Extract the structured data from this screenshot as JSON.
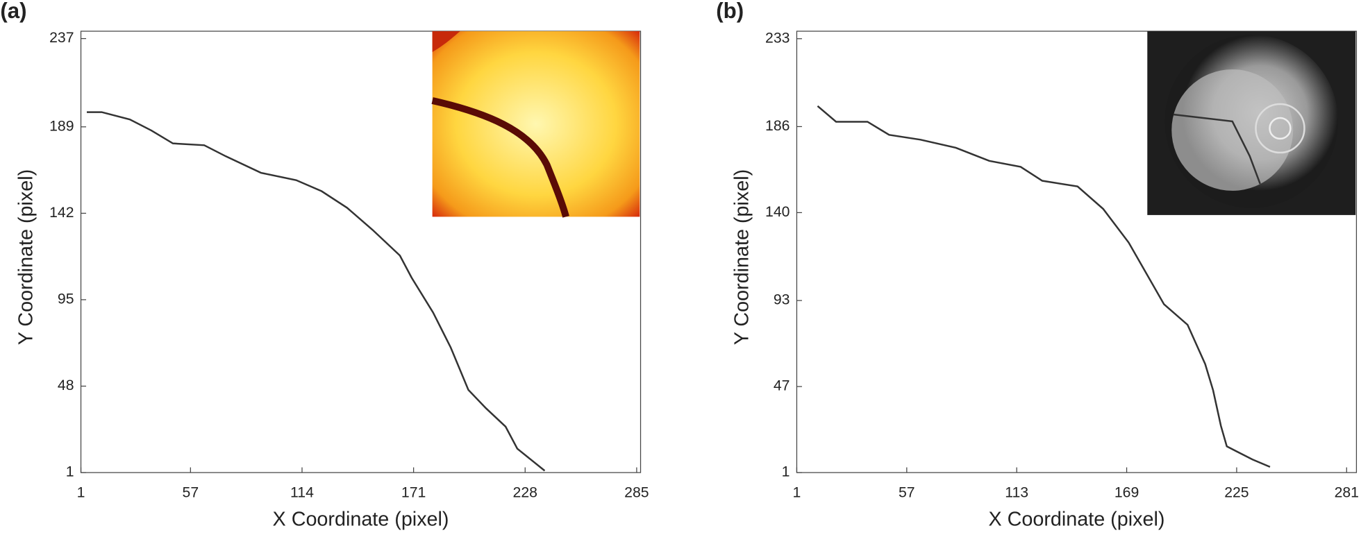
{
  "chart_data": [
    {
      "type": "line",
      "title": "(a)",
      "x_label": "X Coordinate (pixel)",
      "y_label": "Y Coordinate (pixel)",
      "xlim": [
        1,
        287
      ],
      "ylim": [
        1,
        241
      ],
      "xticks": [
        1,
        57,
        114,
        171,
        228,
        285
      ],
      "yticks": [
        1,
        48,
        95,
        142,
        189,
        237
      ],
      "color": "#333333",
      "x": [
        4,
        11.6,
        26,
        37,
        48,
        64,
        75,
        93,
        111,
        124,
        137,
        150,
        164,
        170,
        181,
        190,
        199,
        208,
        218,
        224,
        238
      ],
      "values": [
        197,
        197,
        193,
        187,
        180,
        179,
        173,
        164,
        160,
        154,
        145,
        133,
        119,
        107,
        88,
        69,
        46,
        36,
        26,
        14,
        2
      ]
    },
    {
      "type": "line",
      "title": "(b)",
      "x_label": "X Coordinate (pixel)",
      "y_label": "Y Coordinate (pixel)",
      "xlim": [
        1,
        286
      ],
      "ylim": [
        1,
        237
      ],
      "xticks": [
        1,
        57,
        113,
        169,
        225,
        281
      ],
      "yticks": [
        1,
        47,
        93,
        140,
        186,
        233
      ],
      "color": "#333333",
      "x": [
        11.6,
        21,
        37,
        48,
        64,
        82,
        99,
        115,
        126,
        144,
        157,
        170,
        188,
        200,
        209,
        213,
        217,
        220,
        233,
        242
      ],
      "values": [
        197,
        188.6,
        188.6,
        181.6,
        179,
        174.7,
        167.7,
        164.5,
        157,
        154,
        142,
        124,
        91,
        80,
        59,
        45,
        26,
        15,
        8,
        4
      ]
    }
  ]
}
